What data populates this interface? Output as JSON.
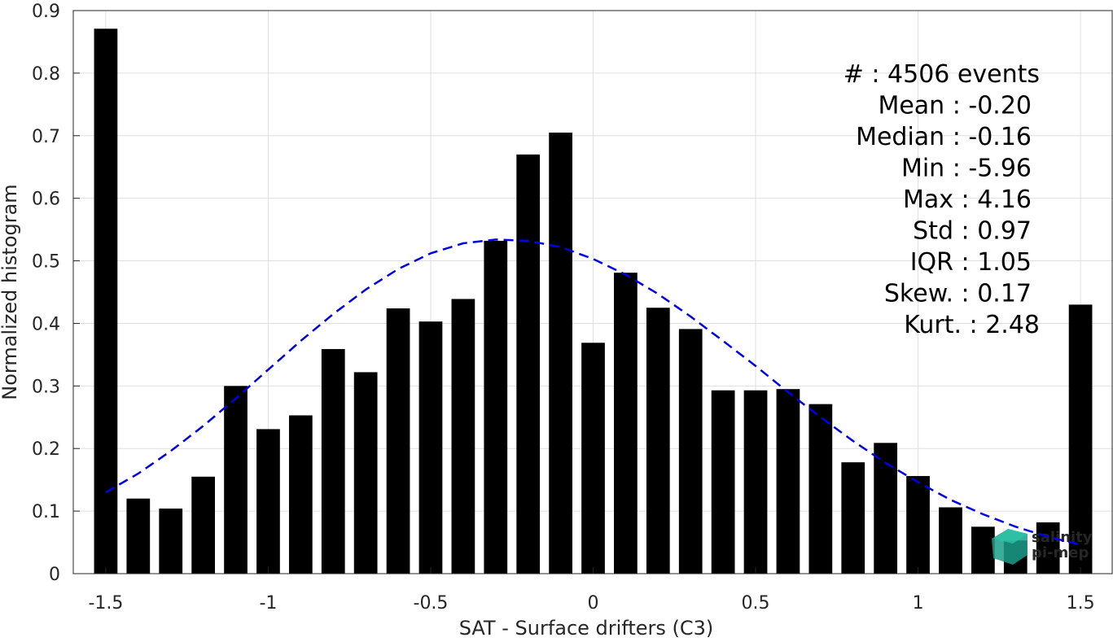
{
  "chart_data": {
    "type": "bar",
    "title": "",
    "xlabel": "SAT - Surface drifters (C3)",
    "ylabel": "Normalized histogram",
    "xlim": [
      -1.6,
      1.6
    ],
    "ylim": [
      0,
      0.9
    ],
    "xticks": [
      -1.5,
      -1,
      -0.5,
      0,
      0.5,
      1,
      1.5
    ],
    "xtick_labels": [
      "-1.5",
      "-1",
      "-0.5",
      "0",
      "0.5",
      "1",
      "1.5"
    ],
    "yticks": [
      0,
      0.1,
      0.2,
      0.3,
      0.4,
      0.5,
      0.6,
      0.7,
      0.8,
      0.9
    ],
    "ytick_labels": [
      "0",
      "0.1",
      "0.2",
      "0.3",
      "0.4",
      "0.5",
      "0.6",
      "0.7",
      "0.8",
      "0.9"
    ],
    "grid": true,
    "bar_color": "#000000",
    "categories": [
      -1.5,
      -1.4,
      -1.3,
      -1.2,
      -1.1,
      -1.0,
      -0.9,
      -0.8,
      -0.7,
      -0.6,
      -0.5,
      -0.4,
      -0.3,
      -0.2,
      -0.1,
      0.0,
      0.1,
      0.2,
      0.3,
      0.4,
      0.5,
      0.6,
      0.7,
      0.8,
      0.9,
      1.0,
      1.1,
      1.2,
      1.3,
      1.4,
      1.5
    ],
    "values": [
      0.871,
      0.12,
      0.104,
      0.155,
      0.3,
      0.231,
      0.253,
      0.359,
      0.322,
      0.424,
      0.403,
      0.439,
      0.532,
      0.67,
      0.705,
      0.369,
      0.481,
      0.425,
      0.391,
      0.293,
      0.293,
      0.295,
      0.271,
      0.178,
      0.209,
      0.156,
      0.106,
      0.075,
      0.053,
      0.082,
      0.43
    ],
    "fit_curve": {
      "style": "dashed",
      "color": "#0000e6",
      "x": [
        -1.5,
        -1.4,
        -1.3,
        -1.2,
        -1.1,
        -1.0,
        -0.9,
        -0.8,
        -0.7,
        -0.6,
        -0.5,
        -0.4,
        -0.3,
        -0.2,
        -0.1,
        0.0,
        0.1,
        0.2,
        0.3,
        0.4,
        0.5,
        0.6,
        0.7,
        0.8,
        0.9,
        1.0,
        1.1,
        1.2,
        1.3,
        1.4,
        1.5
      ],
      "y": [
        0.13,
        0.16,
        0.196,
        0.236,
        0.28,
        0.326,
        0.372,
        0.415,
        0.454,
        0.487,
        0.512,
        0.528,
        0.534,
        0.532,
        0.522,
        0.503,
        0.478,
        0.447,
        0.411,
        0.372,
        0.332,
        0.29,
        0.25,
        0.212,
        0.177,
        0.146,
        0.118,
        0.095,
        0.075,
        0.059,
        0.046
      ]
    },
    "stats": [
      "#  : 4506 events",
      "Mean : -0.20",
      "Median : -0.16",
      "Min : -5.96",
      "Max : 4.16",
      "Std : 0.97",
      "IQR : 1.05",
      "Skew. : 0.17",
      "Kurt. : 2.48"
    ]
  },
  "logo": {
    "line1": "salinity",
    "line2": "pi-mep",
    "color": "#1a9e8a"
  }
}
